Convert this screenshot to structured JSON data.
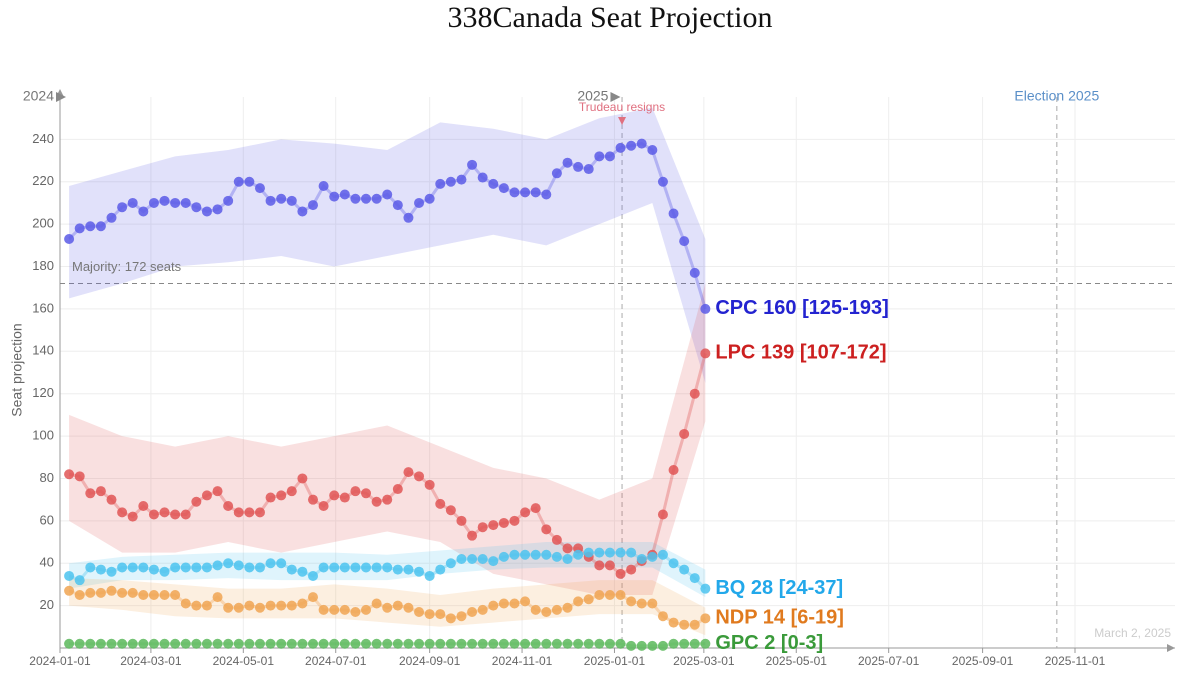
{
  "chart_data": {
    "type": "line",
    "title": "338Canada Seat Projection",
    "ylabel": "Seat projection",
    "xlim": [
      "2024-01-01",
      "2026-01-06"
    ],
    "ylim": [
      0,
      260
    ],
    "yticks": [
      20,
      40,
      60,
      80,
      100,
      120,
      140,
      160,
      180,
      200,
      220,
      240
    ],
    "xticks": [
      "2024-01-01",
      "2024-03-01",
      "2024-05-01",
      "2024-07-01",
      "2024-09-01",
      "2024-11-01",
      "2025-01-01",
      "2025-03-01",
      "2025-05-01",
      "2025-07-01",
      "2025-09-01",
      "2025-11-01"
    ],
    "grid": true,
    "year_markers": [
      {
        "x": "2024-01-01",
        "label": "2024"
      },
      {
        "x": "2025-01-01",
        "label": "2025"
      }
    ],
    "majority": {
      "value": 172,
      "label": "Majority: 172 seats"
    },
    "events": [
      {
        "x": "2025-01-06",
        "label": "Trudeau resigns",
        "color": "#e07080"
      },
      {
        "x": "2025-10-20",
        "label": "Election 2025",
        "color": "#5a8fc8"
      }
    ],
    "watermark": "March 2, 2025",
    "x": [
      "2024-01-07",
      "2024-01-14",
      "2024-01-21",
      "2024-01-28",
      "2024-02-04",
      "2024-02-11",
      "2024-02-18",
      "2024-02-25",
      "2024-03-03",
      "2024-03-10",
      "2024-03-17",
      "2024-03-24",
      "2024-03-31",
      "2024-04-07",
      "2024-04-14",
      "2024-04-21",
      "2024-04-28",
      "2024-05-05",
      "2024-05-12",
      "2024-05-19",
      "2024-05-26",
      "2024-06-02",
      "2024-06-09",
      "2024-06-16",
      "2024-06-23",
      "2024-06-30",
      "2024-07-07",
      "2024-07-14",
      "2024-07-21",
      "2024-07-28",
      "2024-08-04",
      "2024-08-11",
      "2024-08-18",
      "2024-08-25",
      "2024-09-01",
      "2024-09-08",
      "2024-09-15",
      "2024-09-22",
      "2024-09-29",
      "2024-10-06",
      "2024-10-13",
      "2024-10-20",
      "2024-10-27",
      "2024-11-03",
      "2024-11-10",
      "2024-11-17",
      "2024-11-24",
      "2024-12-01",
      "2024-12-08",
      "2024-12-15",
      "2024-12-22",
      "2024-12-29",
      "2025-01-05",
      "2025-01-12",
      "2025-01-19",
      "2025-01-26",
      "2025-02-02",
      "2025-02-09",
      "2025-02-16",
      "2025-02-23",
      "2025-03-02"
    ],
    "band_x": [
      "2024-01-07",
      "2024-02-11",
      "2024-03-17",
      "2024-04-21",
      "2024-05-26",
      "2024-06-30",
      "2024-08-04",
      "2024-09-08",
      "2024-10-13",
      "2024-11-17",
      "2024-12-22",
      "2025-01-26",
      "2025-03-02"
    ],
    "series": [
      {
        "end_label": "CPC 160 [125-193]",
        "color": "#5b5be6",
        "label_color": "#2323d0",
        "values": [
          193,
          198,
          199,
          199,
          203,
          208,
          210,
          206,
          210,
          211,
          210,
          210,
          208,
          206,
          207,
          211,
          220,
          220,
          217,
          211,
          212,
          211,
          206,
          209,
          218,
          213,
          214,
          212,
          212,
          212,
          214,
          209,
          203,
          210,
          212,
          219,
          220,
          221,
          228,
          222,
          219,
          217,
          215,
          215,
          215,
          214,
          224,
          229,
          227,
          226,
          232,
          232,
          236,
          237,
          238,
          235,
          220,
          205,
          192,
          177,
          160
        ],
        "band": {
          "high": [
            218,
            225,
            232,
            235,
            240,
            238,
            235,
            248,
            245,
            240,
            250,
            255,
            193
          ],
          "low": [
            165,
            172,
            180,
            182,
            185,
            180,
            185,
            190,
            195,
            190,
            200,
            210,
            125
          ]
        }
      },
      {
        "end_label": "LPC 139 [107-172]",
        "color": "#e05555",
        "label_color": "#cc2020",
        "values": [
          82,
          81,
          73,
          74,
          70,
          64,
          62,
          67,
          63,
          64,
          63,
          63,
          69,
          72,
          74,
          67,
          64,
          64,
          64,
          71,
          72,
          74,
          80,
          70,
          67,
          72,
          71,
          74,
          73,
          69,
          70,
          75,
          83,
          81,
          77,
          68,
          65,
          60,
          53,
          57,
          58,
          59,
          60,
          64,
          66,
          56,
          51,
          47,
          47,
          43,
          39,
          39,
          35,
          37,
          41,
          44,
          63,
          84,
          101,
          120,
          139
        ],
        "band": {
          "high": [
            110,
            100,
            95,
            100,
            95,
            100,
            105,
            95,
            85,
            80,
            70,
            80,
            172
          ],
          "low": [
            60,
            45,
            45,
            50,
            45,
            50,
            55,
            50,
            35,
            30,
            25,
            25,
            107
          ]
        }
      },
      {
        "end_label": "BQ 28 [24-37]",
        "color": "#4cc3ee",
        "label_color": "#22a8ea",
        "values": [
          34,
          32,
          38,
          37,
          36,
          38,
          38,
          38,
          37,
          36,
          38,
          38,
          38,
          38,
          39,
          40,
          39,
          38,
          38,
          40,
          40,
          37,
          36,
          34,
          38,
          38,
          38,
          38,
          38,
          38,
          38,
          37,
          37,
          36,
          34,
          37,
          40,
          42,
          42,
          42,
          41,
          43,
          44,
          44,
          44,
          44,
          43,
          42,
          44,
          45,
          45,
          45,
          45,
          45,
          42,
          43,
          44,
          40,
          37,
          33,
          28
        ],
        "band": {
          "high": [
            40,
            43,
            44,
            45,
            45,
            45,
            44,
            46,
            48,
            50,
            50,
            50,
            37
          ],
          "low": [
            28,
            32,
            32,
            33,
            32,
            32,
            32,
            35,
            37,
            38,
            38,
            38,
            24
          ]
        }
      },
      {
        "end_label": "NDP 14 [6-19]",
        "color": "#f0a452",
        "label_color": "#e07a1e",
        "values": [
          27,
          25,
          26,
          26,
          27,
          26,
          26,
          25,
          25,
          25,
          25,
          21,
          20,
          20,
          24,
          19,
          19,
          20,
          19,
          20,
          20,
          20,
          21,
          24,
          18,
          18,
          18,
          17,
          18,
          21,
          19,
          20,
          19,
          17,
          16,
          16,
          14,
          15,
          17,
          18,
          20,
          21,
          21,
          22,
          18,
          17,
          18,
          19,
          22,
          23,
          25,
          25,
          25,
          22,
          21,
          21,
          15,
          12,
          11,
          11,
          14
        ],
        "band": {
          "high": [
            33,
            32,
            30,
            28,
            28,
            30,
            28,
            25,
            28,
            30,
            32,
            32,
            19
          ],
          "low": [
            20,
            18,
            15,
            14,
            14,
            14,
            12,
            10,
            12,
            14,
            16,
            16,
            6
          ]
        }
      },
      {
        "end_label": "GPC 2 [0-3]",
        "color": "#5cb85c",
        "label_color": "#3a9a3a",
        "values": [
          2,
          2,
          2,
          2,
          2,
          2,
          2,
          2,
          2,
          2,
          2,
          2,
          2,
          2,
          2,
          2,
          2,
          2,
          2,
          2,
          2,
          2,
          2,
          2,
          2,
          2,
          2,
          2,
          2,
          2,
          2,
          2,
          2,
          2,
          2,
          2,
          2,
          2,
          2,
          2,
          2,
          2,
          2,
          2,
          2,
          2,
          2,
          2,
          2,
          2,
          2,
          2,
          2,
          1,
          1,
          1,
          1,
          2,
          2,
          2,
          2
        ]
      }
    ]
  }
}
